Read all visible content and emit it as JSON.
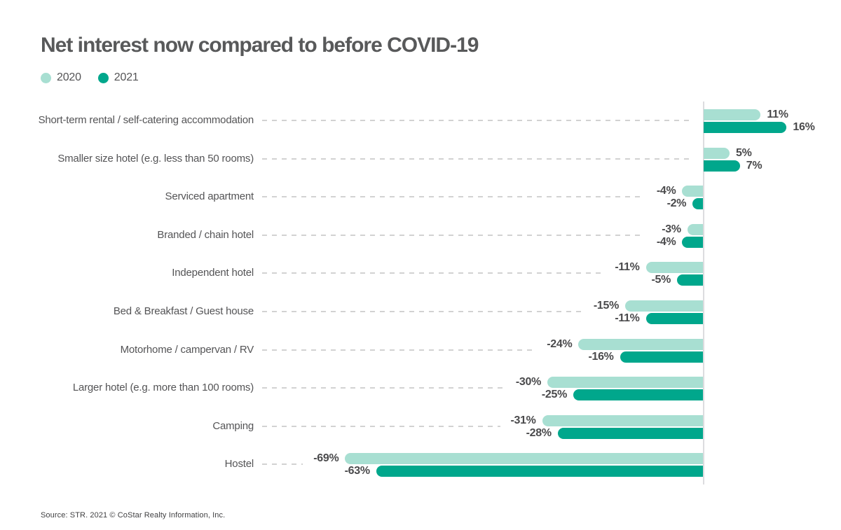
{
  "title": "Net interest now compared to before COVID-19",
  "legend": [
    {
      "label": "2020",
      "color": "#a8dfd2"
    },
    {
      "label": "2021",
      "color": "#00a78c"
    }
  ],
  "source": "Source: STR. 2021 © CoStar Realty Information, Inc.",
  "colors": {
    "series_2020": "#a8dfd2",
    "series_2021": "#00a78c",
    "axis_line": "#dcdcdf",
    "leader_dash": "#d2d2d2",
    "text_gray": "#545456",
    "value_text": "#4a4a4c"
  },
  "chart_data": {
    "type": "bar",
    "orientation": "horizontal",
    "title": "Net interest now compared to before COVID-19",
    "xlabel": "",
    "ylabel": "",
    "value_format": "percent",
    "xlim": [
      -69,
      16
    ],
    "grid": false,
    "legend_position": "top-left",
    "categories": [
      "Short-term rental / self-catering accommodation",
      "Smaller size hotel (e.g. less than 50 rooms)",
      "Serviced apartment",
      "Branded / chain hotel",
      "Independent hotel",
      "Bed & Breakfast / Guest house",
      "Motorhome / campervan / RV",
      "Larger hotel (e.g. more than 100 rooms)",
      "Camping",
      "Hostel"
    ],
    "series": [
      {
        "name": "2020",
        "color": "#a8dfd2",
        "values": [
          11,
          5,
          -4,
          -3,
          -11,
          -15,
          -24,
          -30,
          -31,
          -69
        ]
      },
      {
        "name": "2021",
        "color": "#00a78c",
        "values": [
          16,
          7,
          -2,
          -4,
          -5,
          -11,
          -16,
          -25,
          -28,
          -63
        ]
      }
    ],
    "value_labels": [
      [
        "11%",
        "16%"
      ],
      [
        "5%",
        "7%"
      ],
      [
        "-4%",
        "-2%"
      ],
      [
        "-3%",
        "-4%"
      ],
      [
        "-11%",
        "-5%"
      ],
      [
        "-15%",
        "-11%"
      ],
      [
        "-24%",
        "-16%"
      ],
      [
        "-30%",
        "-25%"
      ],
      [
        "-31%",
        "-28%"
      ],
      [
        "-69%",
        "-63%"
      ]
    ]
  }
}
